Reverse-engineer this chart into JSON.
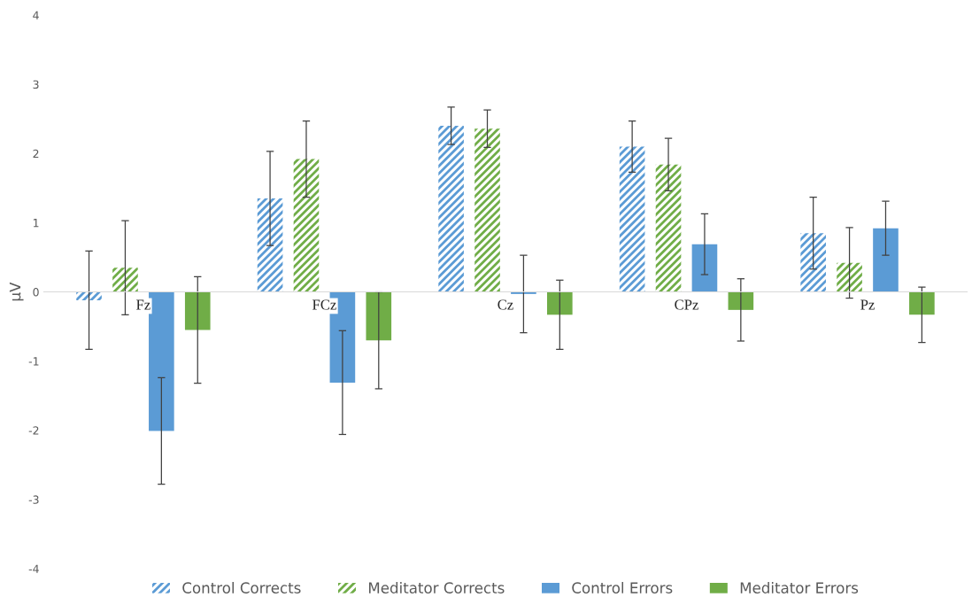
{
  "chart_data": {
    "type": "bar",
    "ylabel": "µV",
    "categories": [
      "Fz",
      "FCz",
      "Cz",
      "CPz",
      "Pz"
    ],
    "ylim": [
      -4,
      4
    ],
    "yticks": [
      -4,
      -3,
      -2,
      -1,
      0,
      1,
      2,
      3,
      4
    ],
    "grid": false,
    "legend": "bottom",
    "series": [
      {
        "name": "Control Corrects",
        "color": "#5b9bd5",
        "values": [
          -0.12,
          1.35,
          2.4,
          2.1,
          0.85
        ],
        "errors": [
          0.71,
          0.68,
          0.27,
          0.37,
          0.52
        ]
      },
      {
        "name": "Meditator Corrects",
        "color": "#70ad47",
        "values": [
          0.35,
          1.92,
          2.36,
          1.84,
          0.42
        ],
        "errors": [
          0.68,
          0.55,
          0.27,
          0.38,
          0.51
        ]
      },
      {
        "name": "Control Errors",
        "color": "#5b9bd5",
        "values": [
          -2.01,
          -1.31,
          -0.03,
          0.69,
          0.92
        ],
        "errors": [
          0.77,
          0.75,
          0.56,
          0.44,
          0.39
        ]
      },
      {
        "name": "Meditator Errors",
        "color": "#70ad47",
        "values": [
          -0.55,
          -0.7,
          -0.33,
          -0.26,
          -0.33
        ],
        "errors": [
          0.77,
          0.7,
          0.5,
          0.45,
          0.4
        ]
      }
    ]
  }
}
